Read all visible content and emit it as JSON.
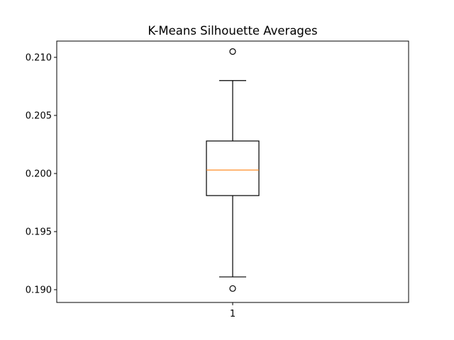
{
  "chart_data": {
    "type": "box",
    "title": "K-Means Silhouette Averages",
    "xlabel": "",
    "ylabel": "",
    "categories": [
      "1"
    ],
    "ylim": [
      0.1889,
      0.2114
    ],
    "yticks": [
      "0.190",
      "0.195",
      "0.200",
      "0.205",
      "0.210"
    ],
    "boxes": [
      {
        "category": "1",
        "whisker_low": 0.1911,
        "q1": 0.1981,
        "median": 0.2003,
        "q3": 0.2028,
        "whisker_high": 0.208,
        "fliers": [
          0.2105,
          0.1901
        ]
      }
    ],
    "grid": false,
    "colors": {
      "median": "#ff7f0e",
      "box": "#000000"
    }
  }
}
